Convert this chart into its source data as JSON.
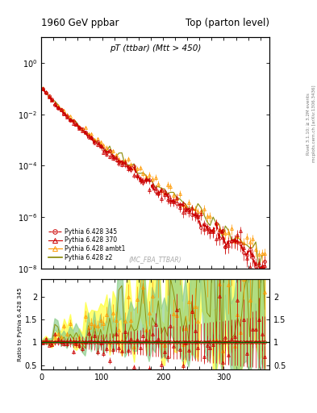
{
  "title_left": "1960 GeV ppbar",
  "title_right": "Top (parton level)",
  "plot_title": "pT (ttbar) (Mtt > 450)",
  "watermark": "(MC_FBA_TTBAR)",
  "right_label_top": "Rivet 3.1.10; ≥ 3.2M events",
  "right_label_bottom": "mcplots.cern.ch [arXiv:1306.3436]",
  "ylabel_ratio": "Ratio to Pythia 6.428 345",
  "xlim": [
    0,
    375
  ],
  "ylim_main": [
    1e-08,
    10
  ],
  "ylim_ratio": [
    0.4,
    2.4
  ],
  "ratio_yticks": [
    0.5,
    1.0,
    1.5,
    2.0
  ],
  "colors": {
    "ref": "#cc0000",
    "c370": "#cc0000",
    "ambt1": "#ff9900",
    "z2": "#888800",
    "fill_ambt1": "#ffff44",
    "fill_z2": "#88cc88",
    "hline": "#006600"
  },
  "legend_labels": [
    "Pythia 6.428 345",
    "Pythia 6.428 370",
    "Pythia 6.428 ambt1",
    "Pythia 6.428 z2"
  ]
}
